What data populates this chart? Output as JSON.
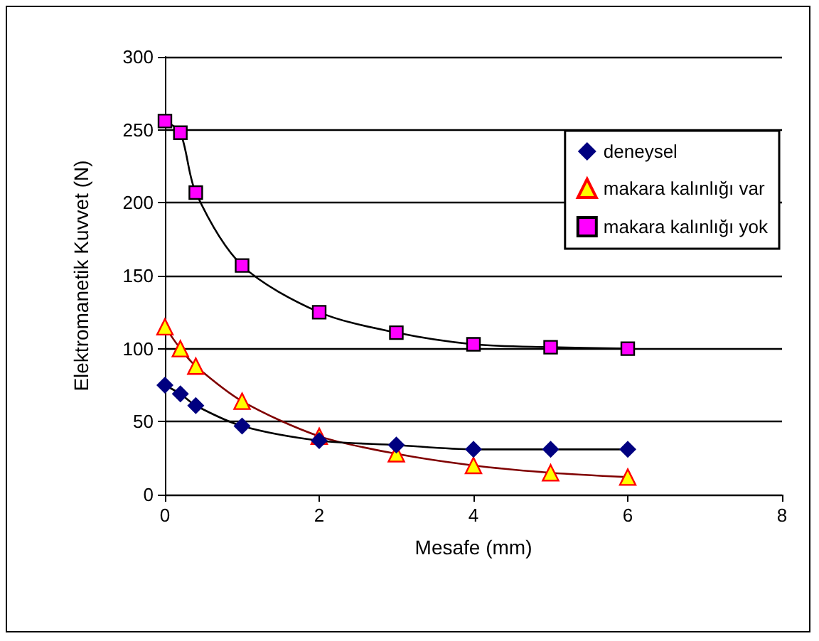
{
  "chart_data": {
    "type": "line",
    "xlabel": "Mesafe (mm)",
    "ylabel": "Elektromanetik Kuvvet (N)",
    "x": [
      0,
      0.2,
      0.4,
      1,
      2,
      3,
      4,
      5,
      6
    ],
    "series": [
      {
        "name": "deneysel",
        "color": "#000080",
        "marker": "diamond",
        "values": [
          75,
          69,
          61,
          47,
          37,
          34,
          31,
          31,
          31
        ]
      },
      {
        "name": "makara kalınlığı var",
        "color": "#ffff00",
        "marker": "triangle",
        "values": [
          115,
          100,
          88,
          64,
          40,
          28,
          20,
          15,
          12
        ]
      },
      {
        "name": "makara kalınlığı yok",
        "color": "#ff00ff",
        "marker": "square",
        "values": [
          256,
          248,
          207,
          157,
          125,
          111,
          103,
          101,
          100
        ]
      }
    ],
    "xlim": [
      0,
      8
    ],
    "xticks": [
      0,
      2,
      4,
      6,
      8
    ],
    "ylim": [
      0,
      300
    ],
    "yticks": [
      0,
      50,
      100,
      150,
      200,
      250,
      300
    ],
    "grid": "y",
    "legend": "top right"
  }
}
